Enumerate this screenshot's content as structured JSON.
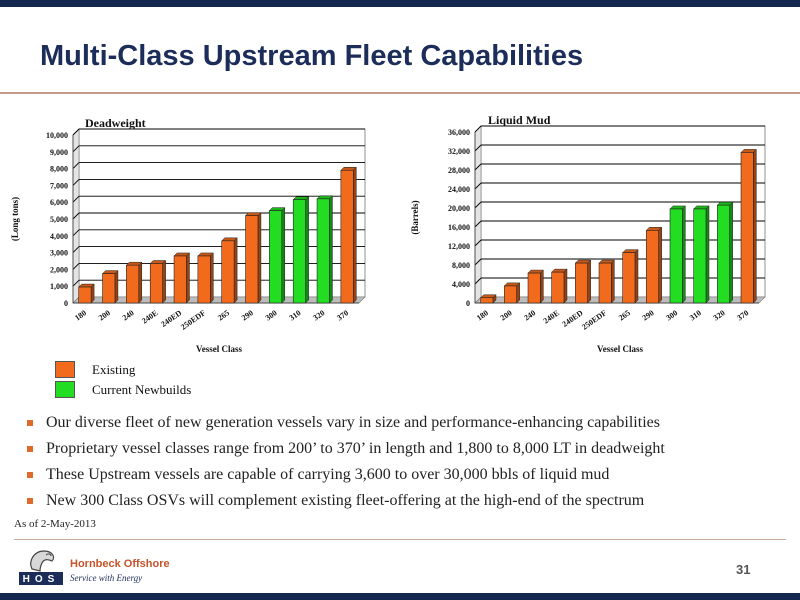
{
  "slide": {
    "title": "Multi-Class Upstream Fleet Capabilities",
    "page_number": "31",
    "as_of": "As of 2-May-2013",
    "brand_name": "Hornbeck Offshore",
    "brand_tagline": "Service with Energy",
    "logo_letters": "HOS"
  },
  "legend": [
    {
      "label": "Existing",
      "color": "#f26b1d"
    },
    {
      "label": "Current Newbuilds",
      "color": "#22dd22"
    }
  ],
  "bullets": [
    "Our diverse fleet of new generation vessels vary in size and performance-enhancing capabilities",
    "Proprietary vessel classes range from 200’ to 370’ in length and 1,800 to 8,000 LT in deadweight",
    "These Upstream vessels are capable of carrying 3,600 to over 30,000 bbls of liquid mud",
    "New 300 Class OSVs will complement existing fleet-offering at the high-end of the spectrum"
  ],
  "chart_data": [
    {
      "type": "bar",
      "title": "Deadweight",
      "xlabel": "Vessel Class",
      "ylabel": "(Long tons)",
      "ylim": [
        0,
        10000
      ],
      "yticks": [
        "0",
        "1,000",
        "2,000",
        "3,000",
        "4,000",
        "5,000",
        "6,000",
        "7,000",
        "8,000",
        "9,000",
        "10,000"
      ],
      "grid": true,
      "categories": [
        "180",
        "200",
        "240",
        "240E",
        "240ED",
        "250EDF",
        "265",
        "290",
        "300",
        "310",
        "320",
        "370"
      ],
      "values": [
        950,
        1750,
        2250,
        2350,
        2800,
        2800,
        3700,
        5200,
        5500,
        6150,
        6200,
        7900
      ],
      "status": [
        "Existing",
        "Existing",
        "Existing",
        "Existing",
        "Existing",
        "Existing",
        "Existing",
        "Existing",
        "Current Newbuilds",
        "Current Newbuilds",
        "Current Newbuilds",
        "Existing"
      ]
    },
    {
      "type": "bar",
      "title": "Liquid Mud",
      "xlabel": "Vessel Class",
      "ylabel": "(Barrels)",
      "ylim": [
        0,
        36000
      ],
      "yticks": [
        "0",
        "4,000",
        "8,000",
        "12,000",
        "16,000",
        "20,000",
        "24,000",
        "28,000",
        "32,000",
        "36,000"
      ],
      "grid": true,
      "categories": [
        "180",
        "200",
        "240",
        "240E",
        "240ED",
        "250EDF",
        "265",
        "290",
        "300",
        "310",
        "320",
        "370"
      ],
      "values": [
        1100,
        3600,
        6300,
        6500,
        8400,
        8400,
        10600,
        15300,
        19800,
        19800,
        20600,
        31700
      ],
      "status": [
        "Existing",
        "Existing",
        "Existing",
        "Existing",
        "Existing",
        "Existing",
        "Existing",
        "Existing",
        "Current Newbuilds",
        "Current Newbuilds",
        "Current Newbuilds",
        "Existing"
      ]
    }
  ]
}
